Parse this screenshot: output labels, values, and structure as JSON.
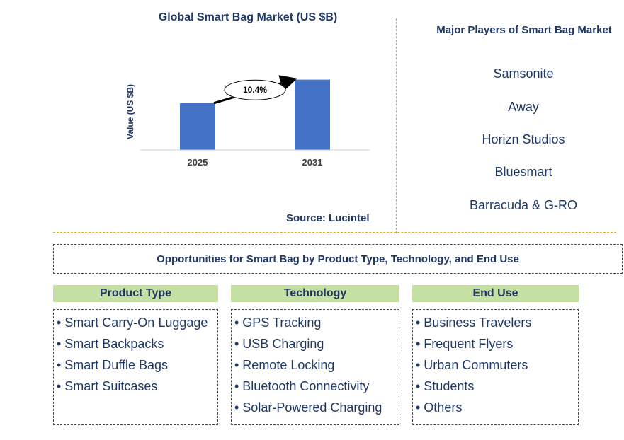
{
  "chart_data": {
    "type": "bar",
    "title": "Global Smart Bag Market (US $B)",
    "ylabel": "Value (US $B)",
    "categories": [
      "2025",
      "2031"
    ],
    "values": [
      1.0,
      1.5
    ],
    "ylim": [
      0,
      1.6
    ],
    "annotation": "10.4%",
    "bar_color": "#4472c4",
    "source": "Source: Lucintel"
  },
  "players": {
    "title": "Major Players of Smart Bag Market",
    "items": [
      "Samsonite",
      "Away",
      "Horizn Studios",
      "Bluesmart",
      "Barracuda & G-RO"
    ]
  },
  "opportunities": {
    "title": "Opportunities for Smart Bag by Product Type, Technology, and End Use",
    "columns": [
      {
        "heading": "Product Type",
        "items": [
          "• Smart Carry-On Luggage",
          "• Smart Backpacks",
          "• Smart Duffle Bags",
          "• Smart Suitcases"
        ]
      },
      {
        "heading": "Technology",
        "items": [
          "• GPS Tracking",
          "• USB Charging",
          "• Remote Locking",
          "• Bluetooth Connectivity",
          "• Solar-Powered Charging"
        ]
      },
      {
        "heading": "End Use",
        "items": [
          "• Business Travelers",
          "• Frequent Flyers",
          "• Urban Commuters",
          "• Students",
          "• Others"
        ]
      }
    ]
  }
}
